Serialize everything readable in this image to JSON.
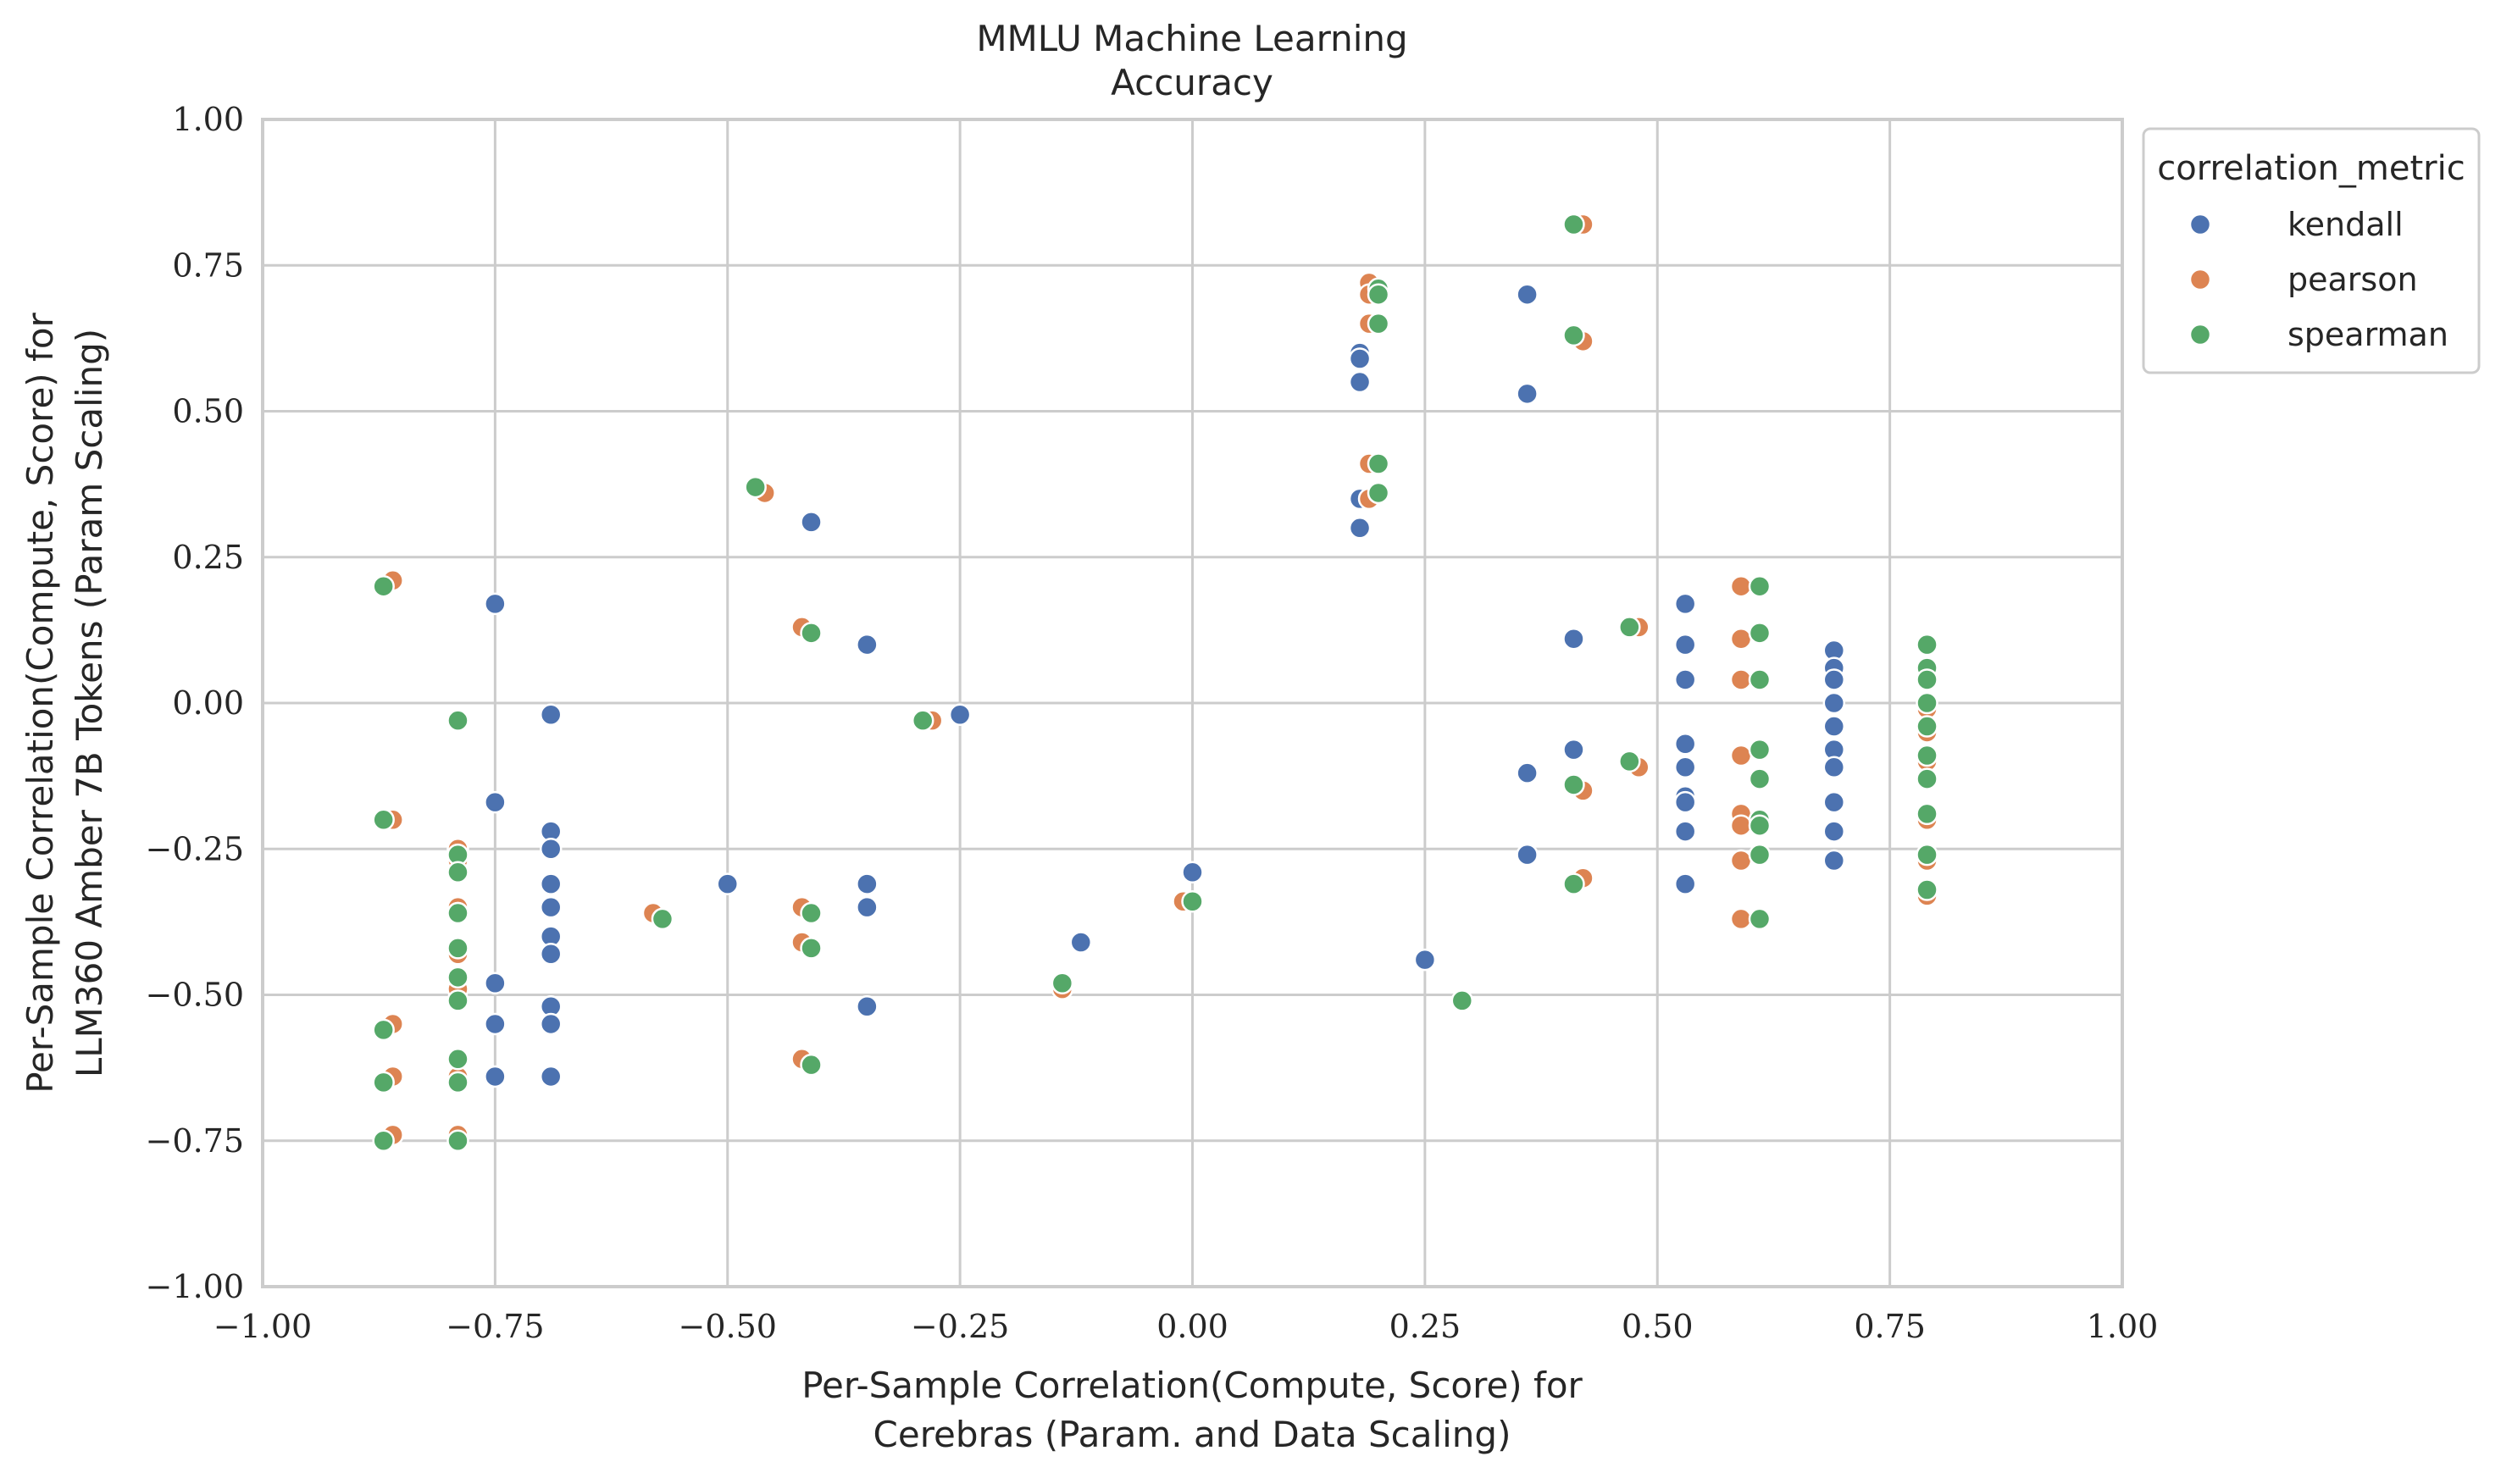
{
  "chart_data": {
    "type": "scatter",
    "title": [
      "MMLU Machine Learning",
      "Accuracy"
    ],
    "xlabel": [
      "Per-Sample Correlation(Compute, Score) for",
      "Cerebras (Param. and Data Scaling)"
    ],
    "ylabel": [
      "Per-Sample Correlation(Compute, Score) for",
      "LLM360 Amber 7B Tokens (Param Scaling)"
    ],
    "xlim": [
      -1.0,
      1.0
    ],
    "ylim": [
      -1.0,
      1.0
    ],
    "xticks": [
      "−1.00",
      "−0.75",
      "−0.50",
      "−0.25",
      "0.00",
      "0.25",
      "0.50",
      "0.75",
      "1.00"
    ],
    "yticks": [
      "−1.00",
      "−0.75",
      "−0.50",
      "−0.25",
      "0.00",
      "0.25",
      "0.50",
      "0.75",
      "1.00"
    ],
    "grid": true,
    "legend": {
      "title": "correlation_metric",
      "placement": "outside-top-right"
    },
    "series": [
      {
        "name": "kendall",
        "color": "#4c72b0",
        "points": [
          [
            -0.75,
            0.17
          ],
          [
            -0.75,
            -0.17
          ],
          [
            -0.75,
            -0.48
          ],
          [
            -0.75,
            -0.55
          ],
          [
            -0.75,
            -0.64
          ],
          [
            -0.69,
            -0.02
          ],
          [
            -0.69,
            -0.22
          ],
          [
            -0.69,
            -0.25
          ],
          [
            -0.69,
            -0.31
          ],
          [
            -0.69,
            -0.35
          ],
          [
            -0.69,
            -0.4
          ],
          [
            -0.69,
            -0.43
          ],
          [
            -0.69,
            -0.52
          ],
          [
            -0.69,
            -0.55
          ],
          [
            -0.69,
            -0.64
          ],
          [
            -0.5,
            -0.31
          ],
          [
            -0.41,
            0.31
          ],
          [
            -0.35,
            0.1
          ],
          [
            -0.35,
            -0.31
          ],
          [
            -0.35,
            -0.35
          ],
          [
            -0.35,
            -0.52
          ],
          [
            -0.25,
            -0.02
          ],
          [
            -0.12,
            -0.41
          ],
          [
            0.0,
            -0.29
          ],
          [
            0.18,
            0.6
          ],
          [
            0.18,
            0.59
          ],
          [
            0.18,
            0.55
          ],
          [
            0.18,
            0.35
          ],
          [
            0.18,
            0.3
          ],
          [
            0.25,
            -0.44
          ],
          [
            0.36,
            0.7
          ],
          [
            0.36,
            0.53
          ],
          [
            0.36,
            -0.12
          ],
          [
            0.36,
            -0.26
          ],
          [
            0.41,
            0.11
          ],
          [
            0.41,
            -0.08
          ],
          [
            0.53,
            0.17
          ],
          [
            0.53,
            0.1
          ],
          [
            0.53,
            0.04
          ],
          [
            0.53,
            -0.07
          ],
          [
            0.53,
            -0.11
          ],
          [
            0.53,
            -0.16
          ],
          [
            0.53,
            -0.17
          ],
          [
            0.53,
            -0.22
          ],
          [
            0.53,
            -0.31
          ],
          [
            0.69,
            0.09
          ],
          [
            0.69,
            0.06
          ],
          [
            0.69,
            0.04
          ],
          [
            0.69,
            0.0
          ],
          [
            0.69,
            -0.04
          ],
          [
            0.69,
            -0.08
          ],
          [
            0.69,
            -0.11
          ],
          [
            0.69,
            -0.17
          ],
          [
            0.69,
            -0.22
          ],
          [
            0.69,
            -0.27
          ]
        ]
      },
      {
        "name": "pearson",
        "color": "#dd8452",
        "points": [
          [
            -0.86,
            0.21
          ],
          [
            -0.86,
            -0.2
          ],
          [
            -0.86,
            -0.55
          ],
          [
            -0.86,
            -0.64
          ],
          [
            -0.86,
            -0.74
          ],
          [
            -0.79,
            -0.03
          ],
          [
            -0.79,
            -0.25
          ],
          [
            -0.79,
            -0.27
          ],
          [
            -0.79,
            -0.35
          ],
          [
            -0.79,
            -0.36
          ],
          [
            -0.79,
            -0.43
          ],
          [
            -0.79,
            -0.47
          ],
          [
            -0.79,
            -0.49
          ],
          [
            -0.79,
            -0.61
          ],
          [
            -0.79,
            -0.64
          ],
          [
            -0.79,
            -0.74
          ],
          [
            -0.58,
            -0.36
          ],
          [
            -0.46,
            0.36
          ],
          [
            -0.42,
            0.13
          ],
          [
            -0.42,
            -0.35
          ],
          [
            -0.42,
            -0.41
          ],
          [
            -0.42,
            -0.61
          ],
          [
            -0.28,
            -0.03
          ],
          [
            -0.14,
            -0.49
          ],
          [
            -0.01,
            -0.34
          ],
          [
            0.19,
            0.72
          ],
          [
            0.19,
            0.7
          ],
          [
            0.19,
            0.65
          ],
          [
            0.19,
            0.41
          ],
          [
            0.19,
            0.35
          ],
          [
            0.42,
            0.82
          ],
          [
            0.42,
            0.62
          ],
          [
            0.42,
            -0.15
          ],
          [
            0.42,
            -0.3
          ],
          [
            0.48,
            0.13
          ],
          [
            0.48,
            -0.11
          ],
          [
            0.59,
            0.2
          ],
          [
            0.59,
            0.11
          ],
          [
            0.59,
            0.04
          ],
          [
            0.59,
            -0.09
          ],
          [
            0.59,
            -0.19
          ],
          [
            0.59,
            -0.21
          ],
          [
            0.59,
            -0.27
          ],
          [
            0.59,
            -0.37
          ],
          [
            0.79,
            0.1
          ],
          [
            0.79,
            0.06
          ],
          [
            0.79,
            0.04
          ],
          [
            0.79,
            -0.01
          ],
          [
            0.79,
            -0.05
          ],
          [
            0.79,
            -0.1
          ],
          [
            0.79,
            -0.13
          ],
          [
            0.79,
            -0.2
          ],
          [
            0.79,
            -0.27
          ],
          [
            0.79,
            -0.33
          ]
        ]
      },
      {
        "name": "spearman",
        "color": "#55a868",
        "points": [
          [
            -0.87,
            0.2
          ],
          [
            -0.87,
            -0.2
          ],
          [
            -0.87,
            -0.56
          ],
          [
            -0.87,
            -0.65
          ],
          [
            -0.87,
            -0.75
          ],
          [
            -0.79,
            -0.03
          ],
          [
            -0.79,
            -0.26
          ],
          [
            -0.79,
            -0.29
          ],
          [
            -0.79,
            -0.36
          ],
          [
            -0.79,
            -0.42
          ],
          [
            -0.79,
            -0.47
          ],
          [
            -0.79,
            -0.51
          ],
          [
            -0.79,
            -0.61
          ],
          [
            -0.79,
            -0.65
          ],
          [
            -0.79,
            -0.75
          ],
          [
            -0.57,
            -0.37
          ],
          [
            -0.47,
            0.37
          ],
          [
            -0.41,
            0.12
          ],
          [
            -0.41,
            -0.36
          ],
          [
            -0.41,
            -0.42
          ],
          [
            -0.41,
            -0.62
          ],
          [
            -0.29,
            -0.03
          ],
          [
            -0.14,
            -0.48
          ],
          [
            0.0,
            -0.34
          ],
          [
            0.2,
            0.71
          ],
          [
            0.2,
            0.7
          ],
          [
            0.2,
            0.65
          ],
          [
            0.2,
            0.41
          ],
          [
            0.2,
            0.36
          ],
          [
            0.29,
            -0.51
          ],
          [
            0.41,
            0.82
          ],
          [
            0.41,
            0.63
          ],
          [
            0.41,
            -0.14
          ],
          [
            0.41,
            -0.31
          ],
          [
            0.47,
            0.13
          ],
          [
            0.47,
            -0.1
          ],
          [
            0.61,
            0.2
          ],
          [
            0.61,
            0.12
          ],
          [
            0.61,
            0.04
          ],
          [
            0.61,
            -0.08
          ],
          [
            0.61,
            -0.13
          ],
          [
            0.61,
            -0.2
          ],
          [
            0.61,
            -0.21
          ],
          [
            0.61,
            -0.26
          ],
          [
            0.61,
            -0.37
          ],
          [
            0.79,
            0.1
          ],
          [
            0.79,
            0.06
          ],
          [
            0.79,
            0.04
          ],
          [
            0.79,
            0.0
          ],
          [
            0.79,
            -0.04
          ],
          [
            0.79,
            -0.09
          ],
          [
            0.79,
            -0.13
          ],
          [
            0.79,
            -0.19
          ],
          [
            0.79,
            -0.26
          ],
          [
            0.79,
            -0.32
          ]
        ]
      }
    ]
  }
}
